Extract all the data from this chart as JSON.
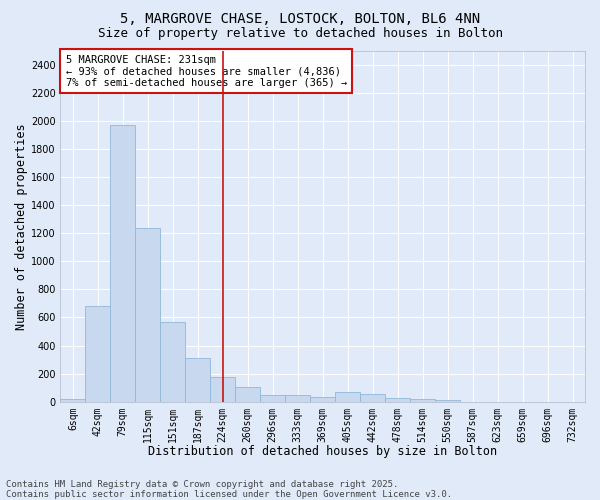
{
  "title_line1": "5, MARGROVE CHASE, LOSTOCK, BOLTON, BL6 4NN",
  "title_line2": "Size of property relative to detached houses in Bolton",
  "xlabel": "Distribution of detached houses by size in Bolton",
  "ylabel": "Number of detached properties",
  "bar_color": "#c8d8ee",
  "bar_edge_color": "#90b8d8",
  "background_color": "#e0eaf8",
  "grid_color": "#ffffff",
  "categories": [
    "6sqm",
    "42sqm",
    "79sqm",
    "115sqm",
    "151sqm",
    "187sqm",
    "224sqm",
    "260sqm",
    "296sqm",
    "333sqm",
    "369sqm",
    "405sqm",
    "442sqm",
    "478sqm",
    "514sqm",
    "550sqm",
    "587sqm",
    "623sqm",
    "659sqm",
    "696sqm",
    "732sqm"
  ],
  "values": [
    20,
    680,
    1970,
    1240,
    570,
    310,
    175,
    105,
    50,
    45,
    30,
    65,
    55,
    25,
    18,
    8,
    0,
    0,
    0,
    0,
    0
  ],
  "ylim": [
    0,
    2500
  ],
  "yticks": [
    0,
    200,
    400,
    600,
    800,
    1000,
    1200,
    1400,
    1600,
    1800,
    2000,
    2200,
    2400
  ],
  "annotation_text": "5 MARGROVE CHASE: 231sqm\n← 93% of detached houses are smaller (4,836)\n7% of semi-detached houses are larger (365) →",
  "vline_index": 6,
  "vline_color": "#cc1111",
  "annotation_box_facecolor": "#ffffff",
  "annotation_box_edgecolor": "#cc1111",
  "footer_line1": "Contains HM Land Registry data © Crown copyright and database right 2025.",
  "footer_line2": "Contains public sector information licensed under the Open Government Licence v3.0.",
  "title_fontsize": 10,
  "subtitle_fontsize": 9,
  "tick_fontsize": 7,
  "xlabel_fontsize": 8.5,
  "ylabel_fontsize": 8.5,
  "annotation_fontsize": 7.5,
  "footer_fontsize": 6.5
}
